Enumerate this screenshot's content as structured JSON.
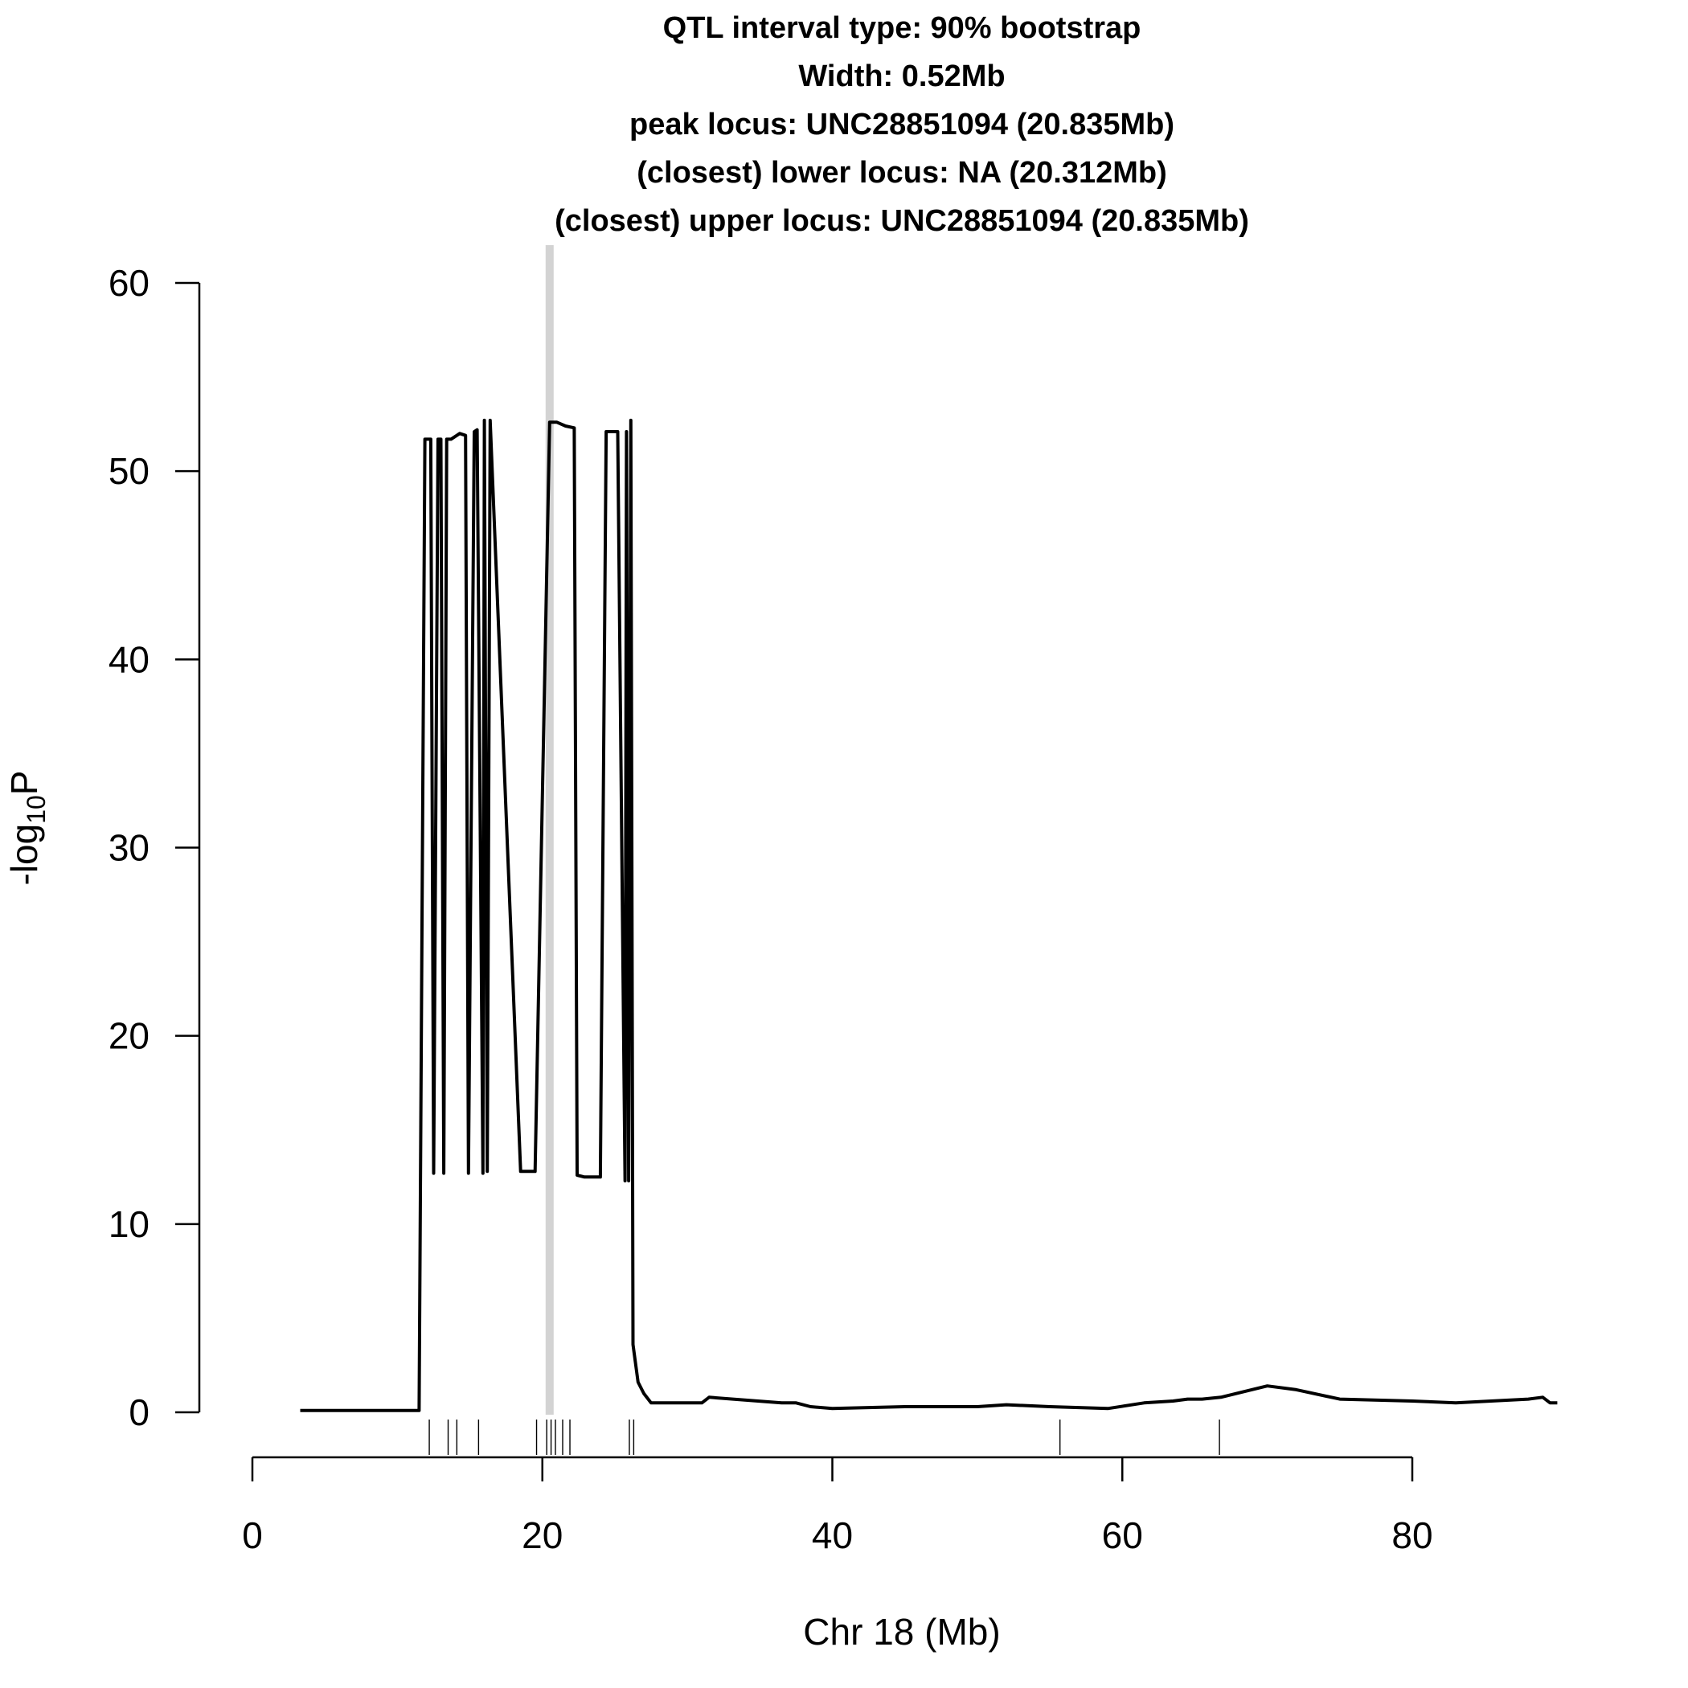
{
  "chart_data": {
    "type": "line",
    "title_lines": [
      "QTL interval type: 90% bootstrap",
      "Width: 0.52Mb",
      "peak locus: UNC28851094 (20.835Mb)",
      "(closest) lower locus: NA (20.312Mb)",
      "(closest) upper locus: UNC28851094 (20.835Mb)"
    ],
    "xlabel": "Chr 18 (Mb)",
    "ylabel": "-log10P",
    "ylabel_parts": {
      "prefix": "-log",
      "subscript": "10",
      "suffix": "P"
    },
    "xlim": [
      0,
      80
    ],
    "ylim": [
      0,
      60
    ],
    "x_ticks": [
      0,
      20,
      40,
      60,
      80
    ],
    "y_ticks": [
      0,
      10,
      20,
      30,
      40,
      50,
      60
    ],
    "x_tick_labels": [
      "0",
      "20",
      "40",
      "60",
      "80"
    ],
    "y_tick_labels": [
      "0",
      "10",
      "20",
      "30",
      "40",
      "50",
      "60"
    ],
    "highlight_interval_mb": 20.5,
    "colors": {
      "line": "#000000",
      "highlight": "#d3d3d3",
      "rug": "#000000"
    },
    "rug_positions_mb": [
      12.2,
      13.5,
      14.1,
      15.6,
      19.6,
      20.3,
      20.6,
      20.9,
      21.4,
      21.9,
      26.0,
      26.3,
      55.7,
      66.7
    ],
    "series": [
      {
        "x": [
          3.3,
          8.0,
          11.5,
          11.9,
          12.3,
          12.5,
          12.8,
          13.0,
          13.2,
          13.4,
          13.7,
          14.3,
          14.7,
          14.9,
          15.3,
          15.5,
          15.9,
          16.0,
          16.2,
          16.4,
          18.5,
          19.5,
          20.5,
          21.0,
          21.6,
          22.2,
          22.4,
          22.9,
          24.0,
          24.4,
          25.2,
          25.7,
          25.8,
          25.95,
          26.1,
          26.25,
          26.6,
          27.0,
          27.5,
          28.2,
          31.0,
          31.5,
          36.5,
          37.5,
          38.5,
          40.0,
          45.0,
          50.0,
          52.0,
          55.0,
          59.0,
          61.5,
          63.5,
          64.5,
          65.5,
          66.8,
          70.0,
          72.0,
          75.0,
          80.0,
          83.0,
          88.0,
          89.0,
          89.5,
          90.0
        ],
        "y": [
          0.1,
          0.1,
          0.1,
          51.7,
          51.7,
          12.7,
          51.7,
          51.7,
          12.7,
          51.7,
          51.7,
          52.0,
          51.9,
          12.7,
          52.1,
          52.2,
          12.7,
          52.7,
          12.8,
          52.7,
          12.8,
          12.8,
          52.6,
          52.6,
          52.4,
          52.3,
          12.6,
          12.5,
          12.5,
          52.1,
          52.1,
          12.3,
          52.1,
          12.3,
          52.7,
          3.6,
          1.6,
          1.0,
          0.5,
          0.5,
          0.5,
          0.8,
          0.5,
          0.5,
          0.3,
          0.2,
          0.3,
          0.3,
          0.4,
          0.3,
          0.2,
          0.5,
          0.6,
          0.7,
          0.7,
          0.8,
          1.4,
          1.2,
          0.7,
          0.6,
          0.5,
          0.7,
          0.8,
          0.5,
          0.5
        ]
      }
    ]
  }
}
